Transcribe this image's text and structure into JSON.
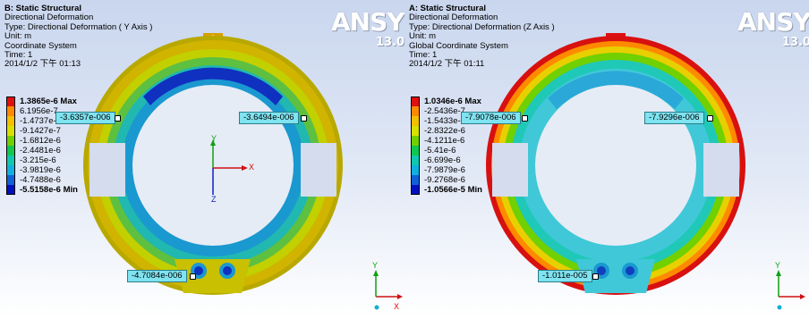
{
  "panels": [
    {
      "id": "left",
      "title": "B: Static Structural",
      "result": "Directional Deformation",
      "type_line": "Type: Directional Deformation ( Y Axis )",
      "unit_line": "Unit: m",
      "coord_line": "Coordinate System",
      "time_line": "Time: 1",
      "date_line": "2014/1/2 下午 01:13",
      "logo": "ANSYS",
      "version": "13.0",
      "legend": [
        {
          "label": "1.3865e-6 Max",
          "color": "#e01010",
          "bold": true
        },
        {
          "label": "6.1956e-7",
          "color": "#ff8a00",
          "bold": false
        },
        {
          "label": "-1.4737e-7",
          "color": "#f2c000",
          "bold": false
        },
        {
          "label": "-9.1427e-7",
          "color": "#d8e000",
          "bold": false
        },
        {
          "label": "-1.6812e-6",
          "color": "#70d000",
          "bold": false
        },
        {
          "label": "-2.4481e-6",
          "color": "#10c850",
          "bold": false
        },
        {
          "label": "-3.215e-6",
          "color": "#10c8b0",
          "bold": false
        },
        {
          "label": "-3.9819e-6",
          "color": "#10b0e0",
          "bold": false
        },
        {
          "label": "-4.7488e-6",
          "color": "#1060d8",
          "bold": false
        },
        {
          "label": "-5.5158e-6 Min",
          "color": "#0010c0",
          "bold": true
        }
      ],
      "probes": [
        "-3.6357e-006",
        "-3.6494e-006",
        "-4.7084e-006"
      ],
      "triad": {
        "x": "X",
        "y": "Y",
        "z": "Z"
      },
      "corner_triad": {
        "x": "X",
        "y": "Y"
      }
    },
    {
      "id": "right",
      "title": "A: Static Structural",
      "result": "Directional Deformation",
      "type_line": "Type: Directional Deformation (Z Axis )",
      "unit_line": "Unit: m",
      "coord_line": "Global Coordinate System",
      "time_line": "Time: 1",
      "date_line": "2014/1/2 下午 01:11",
      "logo": "ANSYS",
      "version": "13.0",
      "legend": [
        {
          "label": "1.0346e-6 Max",
          "color": "#e01010",
          "bold": true
        },
        {
          "label": "-2.5436e-7",
          "color": "#ff8a00",
          "bold": false
        },
        {
          "label": "-1.5433e-6",
          "color": "#f2c000",
          "bold": false
        },
        {
          "label": "-2.8322e-6",
          "color": "#d8e000",
          "bold": false
        },
        {
          "label": "-4.1211e-6",
          "color": "#70d000",
          "bold": false
        },
        {
          "label": "-5.41e-6",
          "color": "#10c850",
          "bold": false
        },
        {
          "label": "-6.699e-6",
          "color": "#10c8b0",
          "bold": false
        },
        {
          "label": "-7.9879e-6",
          "color": "#10b0e0",
          "bold": false
        },
        {
          "label": "-9.2768e-6",
          "color": "#1060d8",
          "bold": false
        },
        {
          "label": "-1.0566e-5 Min",
          "color": "#0010c0",
          "bold": true
        }
      ],
      "probes": [
        "-7.9078e-006",
        "-7.9296e-006",
        "-1.011e-005"
      ],
      "corner_triad": {
        "x": "X",
        "y": "Y"
      }
    }
  ]
}
